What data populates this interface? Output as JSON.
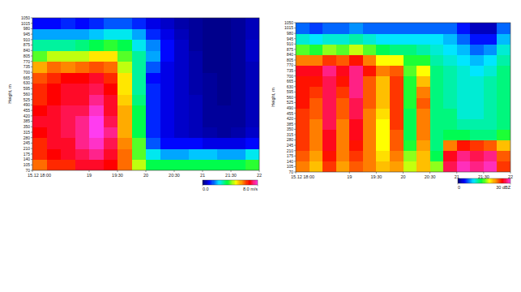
{
  "chart_data": [
    {
      "type": "heatmap",
      "x_edges": [
        18,
        18.25,
        18.5,
        18.75,
        19,
        19.25,
        19.5,
        19.75,
        20,
        20.25,
        20.5,
        20.75,
        21,
        21.25,
        21.5,
        21.75,
        22
      ],
      "y_edges": [
        70,
        140,
        210,
        280,
        350,
        420,
        490,
        560,
        630,
        700,
        770,
        840,
        910,
        980,
        1050
      ],
      "values": [
        [
          6,
          6.5,
          6.5,
          6.8,
          7,
          6.8,
          6.5,
          6.5,
          6.2,
          5.5,
          4,
          3,
          2,
          1
        ],
        [
          6.5,
          6.8,
          7,
          7,
          7,
          7,
          6.8,
          6.8,
          6.5,
          6,
          4.5,
          3,
          2,
          1
        ],
        [
          6.5,
          7,
          7,
          7.2,
          7.2,
          7.2,
          7,
          7,
          6.8,
          5.8,
          4.5,
          3,
          2,
          1.2
        ],
        [
          7,
          7.2,
          7.5,
          7.5,
          7.5,
          7.2,
          7,
          7,
          6.8,
          6,
          4.5,
          3.2,
          2,
          1
        ],
        [
          7,
          7.5,
          7.8,
          8,
          8,
          7.8,
          7.5,
          7.2,
          7,
          6.2,
          5,
          3.5,
          2.2,
          1.2
        ],
        [
          6.8,
          7,
          7.2,
          7.5,
          7.2,
          7,
          7,
          6.8,
          6.5,
          6,
          5,
          3.8,
          2.5,
          1.5
        ],
        [
          6,
          6,
          5.8,
          5.5,
          5.5,
          5.5,
          5.2,
          5,
          5,
          4.5,
          4,
          3.5,
          2.5,
          1.5
        ],
        [
          4.5,
          4,
          4,
          3.5,
          3.5,
          3.5,
          3.2,
          3,
          3,
          3,
          3,
          2.5,
          2,
          1.2
        ],
        [
          3.5,
          2.5,
          1.5,
          1.2,
          1.2,
          1.2,
          1.2,
          1.2,
          1,
          1.5,
          2,
          1.8,
          1.2,
          0.8
        ],
        [
          3.5,
          2,
          1,
          0.8,
          0.8,
          0.8,
          0.8,
          0.8,
          0.8,
          0.8,
          1,
          1,
          0.8,
          0.6
        ],
        [
          3.5,
          2,
          1,
          0.6,
          0.6,
          0.6,
          0.6,
          0.6,
          0.6,
          0.6,
          0.6,
          0.6,
          0.5,
          0.4
        ],
        [
          3.5,
          2.2,
          1,
          0.5,
          0.5,
          0.5,
          0.5,
          0.4,
          0.4,
          0.4,
          0.4,
          0.3,
          0.3,
          0.3
        ],
        [
          3.5,
          2.2,
          0.8,
          0.4,
          0.3,
          0.3,
          0.3,
          0.3,
          0.3,
          0.2,
          0.2,
          0.2,
          0.2,
          0.2
        ],
        [
          3.5,
          2,
          0.8,
          0.3,
          0.3,
          0.3,
          0.2,
          0.2,
          0.2,
          0.2,
          0.2,
          0.2,
          0.2,
          0.2
        ],
        [
          3.5,
          2,
          0.8,
          0.4,
          0.3,
          0.3,
          0.3,
          0.3,
          0.3,
          0.3,
          0.3,
          0.3,
          0.3,
          0.3
        ],
        [
          3.8,
          2.5,
          1,
          0.6,
          0.5,
          0.5,
          0.5,
          0.5,
          0.5,
          0.5,
          0.6,
          0.6,
          0.5,
          0.5
        ]
      ],
      "xlim": [
        18,
        22
      ],
      "ylim": [
        70,
        1050
      ],
      "xticks": [
        {
          "value": 18,
          "label": "15.12 18:00"
        },
        19,
        {
          "value": 19.5,
          "label": "19:30"
        },
        20,
        {
          "value": 20.5,
          "label": "20:30"
        },
        21,
        {
          "value": 21.5,
          "label": "21:30"
        },
        22
      ],
      "yticks": [
        70,
        105,
        140,
        175,
        210,
        245,
        280,
        315,
        350,
        385,
        420,
        455,
        490,
        525,
        560,
        595,
        630,
        665,
        700,
        735,
        770,
        805,
        840,
        875,
        910,
        945,
        980,
        1015,
        1050
      ],
      "y_label": "Height, m",
      "colorbar": {
        "range": [
          0,
          8
        ],
        "ticks": [
          {
            "value": 0,
            "label": "0.0"
          },
          {
            "value": 8,
            "label": "8.0 m/s"
          }
        ]
      }
    },
    {
      "type": "heatmap",
      "x_edges": [
        18,
        18.25,
        18.5,
        18.75,
        19,
        19.25,
        19.5,
        19.75,
        20,
        20.25,
        20.5,
        20.75,
        21,
        21.25,
        21.5,
        21.75,
        22
      ],
      "y_edges": [
        70,
        140,
        210,
        280,
        350,
        420,
        490,
        560,
        630,
        700,
        770,
        840,
        910,
        980,
        1050
      ],
      "values": [
        [
          22,
          23,
          24,
          24,
          24,
          24,
          25,
          25,
          25,
          26,
          22,
          15,
          10,
          6
        ],
        [
          20,
          21,
          22,
          22,
          22,
          23,
          23,
          24,
          25,
          26,
          22,
          14,
          9,
          5
        ],
        [
          24,
          25,
          26,
          26,
          27,
          27,
          27,
          27,
          27,
          28,
          24,
          16,
          10,
          6
        ],
        [
          21,
          22,
          22,
          22,
          22,
          23,
          23,
          24,
          25,
          26,
          23,
          15,
          10,
          6
        ],
        [
          23,
          24,
          25,
          26,
          26,
          27,
          27,
          28,
          28,
          28,
          25,
          17,
          11,
          7
        ],
        [
          22,
          22,
          22,
          22,
          22,
          22,
          23,
          23,
          23,
          25,
          22,
          15,
          10,
          6
        ],
        [
          20,
          19,
          18,
          18,
          18,
          19,
          20,
          20,
          20,
          22,
          18,
          13,
          9,
          6
        ],
        [
          21,
          22,
          23,
          23,
          24,
          24,
          24,
          24,
          24,
          23,
          18,
          12,
          9,
          6
        ],
        [
          17,
          16,
          14,
          13,
          13,
          13,
          14,
          14,
          14,
          15,
          14,
          12,
          9,
          6
        ],
        [
          20,
          20,
          21,
          22,
          22,
          22,
          23,
          22,
          20,
          18,
          14,
          11,
          9,
          6
        ],
        [
          16,
          13,
          12,
          12,
          12,
          12,
          12,
          12,
          12,
          12,
          11,
          10,
          9,
          6
        ],
        [
          27,
          26,
          22,
          13,
          12,
          12,
          11,
          11,
          11,
          11,
          10,
          9,
          8,
          6
        ],
        [
          29,
          28,
          25,
          13,
          11,
          10,
          10,
          10,
          10,
          10,
          9,
          8,
          6,
          4
        ],
        [
          28,
          27,
          24,
          12,
          11,
          10,
          10,
          10,
          10,
          9,
          8,
          6,
          4,
          2
        ],
        [
          29,
          28,
          23,
          12,
          11,
          11,
          11,
          11,
          11,
          10,
          9,
          7,
          4,
          2
        ],
        [
          24,
          23,
          20,
          14,
          12,
          12,
          12,
          12,
          12,
          12,
          11,
          10,
          8,
          6
        ]
      ],
      "xlim": [
        18,
        22
      ],
      "ylim": [
        70,
        1050
      ],
      "xticks": [
        {
          "value": 18,
          "label": "15.12 18:00"
        },
        19,
        {
          "value": 19.5,
          "label": "19:30"
        },
        20,
        {
          "value": 20.5,
          "label": "20:30"
        },
        21,
        {
          "value": 21.5,
          "label": "21:30"
        },
        22
      ],
      "yticks": [
        70,
        105,
        140,
        175,
        210,
        245,
        280,
        315,
        350,
        385,
        420,
        455,
        490,
        525,
        560,
        595,
        630,
        665,
        700,
        735,
        770,
        805,
        840,
        875,
        910,
        945,
        980,
        1015,
        1050
      ],
      "y_label": "Height, m",
      "colorbar": {
        "range": [
          0,
          30
        ],
        "ticks": [
          0,
          {
            "value": 30,
            "label": "30 dBZ"
          }
        ]
      }
    }
  ]
}
